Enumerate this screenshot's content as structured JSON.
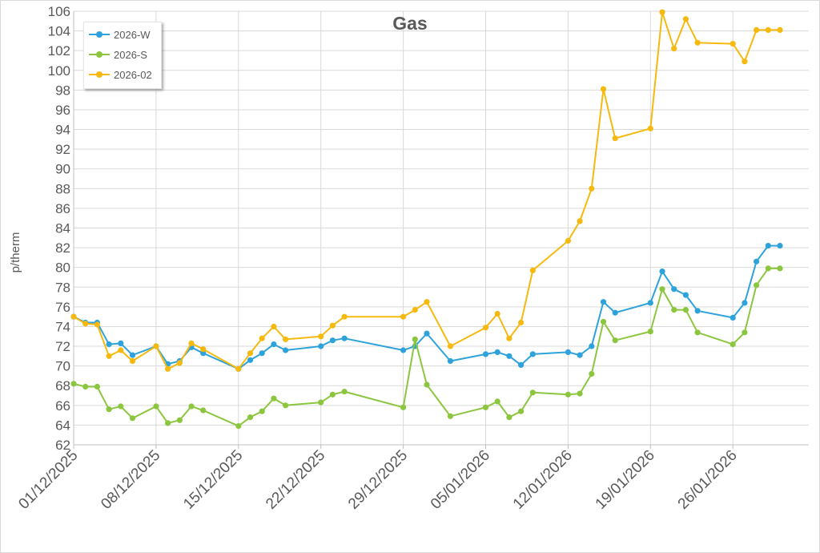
{
  "chart_data": {
    "type": "line",
    "title": "Gas",
    "xlabel": "",
    "ylabel": "p/therm",
    "ylim": [
      62,
      106
    ],
    "y_ticks": [
      62,
      64,
      66,
      68,
      70,
      72,
      74,
      76,
      78,
      80,
      82,
      84,
      86,
      88,
      90,
      92,
      94,
      96,
      98,
      100,
      102,
      104,
      106
    ],
    "x_ticks": [
      "01/12/2025",
      "08/12/2025",
      "15/12/2025",
      "22/12/2025",
      "29/12/2025",
      "05/01/2026",
      "12/01/2026",
      "19/01/2026",
      "26/01/2026"
    ],
    "grid": true,
    "legend_position": "top-left",
    "x": [
      "2025-12-01",
      "2025-12-02",
      "2025-12-03",
      "2025-12-04",
      "2025-12-05",
      "2025-12-06",
      "2025-12-08",
      "2025-12-09",
      "2025-12-10",
      "2025-12-11",
      "2025-12-12",
      "2025-12-15",
      "2025-12-16",
      "2025-12-17",
      "2025-12-18",
      "2025-12-19",
      "2025-12-22",
      "2025-12-23",
      "2025-12-24",
      "2025-12-29",
      "2025-12-30",
      "2025-12-31",
      "2026-01-02",
      "2026-01-05",
      "2026-01-06",
      "2026-01-07",
      "2026-01-08",
      "2026-01-09",
      "2026-01-12",
      "2026-01-13",
      "2026-01-14",
      "2026-01-15",
      "2026-01-16",
      "2026-01-19",
      "2026-01-20",
      "2026-01-21",
      "2026-01-22",
      "2026-01-23",
      "2026-01-26",
      "2026-01-27",
      "2026-01-28",
      "2026-01-29",
      "2026-01-30"
    ],
    "series": [
      {
        "name": "2026-W",
        "color": "#2ea3db",
        "values": [
          75.0,
          74.4,
          74.4,
          72.2,
          72.3,
          71.1,
          72.0,
          70.2,
          70.5,
          71.9,
          71.3,
          69.7,
          70.6,
          71.3,
          72.2,
          71.6,
          72.0,
          72.6,
          72.8,
          71.6,
          72.0,
          73.3,
          70.5,
          71.2,
          71.4,
          71.0,
          70.1,
          71.2,
          71.4,
          71.1,
          72.0,
          76.5,
          75.4,
          76.4,
          79.6,
          77.8,
          77.2,
          75.6,
          74.9,
          76.4,
          80.6,
          82.2,
          82.2
        ]
      },
      {
        "name": "2026-S",
        "color": "#8cc63f",
        "values": [
          68.2,
          67.9,
          67.9,
          65.6,
          65.9,
          64.7,
          65.9,
          64.2,
          64.5,
          65.9,
          65.5,
          63.9,
          64.8,
          65.4,
          66.7,
          66.0,
          66.3,
          67.1,
          67.4,
          65.8,
          72.7,
          68.1,
          64.9,
          65.8,
          66.4,
          64.8,
          65.4,
          67.3,
          67.1,
          67.2,
          69.2,
          74.5,
          72.6,
          73.5,
          77.8,
          75.7,
          75.7,
          73.4,
          72.2,
          73.4,
          78.2,
          79.9,
          79.9
        ]
      },
      {
        "name": "2026-02",
        "color": "#f5b90f",
        "values": [
          75.0,
          74.3,
          74.2,
          71.0,
          71.6,
          70.5,
          72.0,
          69.7,
          70.3,
          72.3,
          71.7,
          69.7,
          71.3,
          72.8,
          74.0,
          72.7,
          73.0,
          74.1,
          75.0,
          75.0,
          75.7,
          76.5,
          72.0,
          73.9,
          75.3,
          72.8,
          74.4,
          79.7,
          82.7,
          84.7,
          88.0,
          98.1,
          93.1,
          94.1,
          105.9,
          102.2,
          105.2,
          102.8,
          102.7,
          100.9,
          104.1,
          104.1,
          104.1
        ]
      }
    ]
  }
}
